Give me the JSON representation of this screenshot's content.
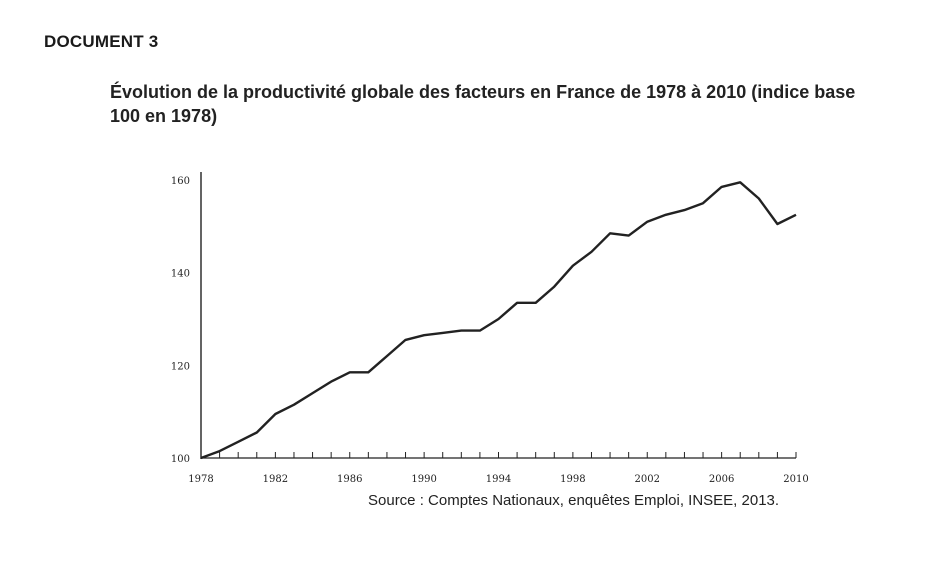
{
  "document_label": "DOCUMENT 3",
  "title": "Évolution de la productivité globale des facteurs en France de 1978 à 2010 (indice base 100 en 1978)",
  "source": "Source : Comptes Nationaux, enquêtes Emploi, INSEE, 2013.",
  "chart_data": {
    "type": "line",
    "title": "Évolution de la productivité globale des facteurs en France de 1978 à 2010 (indice base 100 en 1978)",
    "xlabel": "",
    "ylabel": "",
    "xlim": [
      1978,
      2010
    ],
    "ylim": [
      100,
      160
    ],
    "x_ticks": [
      1978,
      1982,
      1986,
      1990,
      1994,
      1998,
      2002,
      2006,
      2010
    ],
    "y_ticks": [
      100,
      120,
      140,
      160
    ],
    "grid": false,
    "legend": "none",
    "line_color": "#222222",
    "series": [
      {
        "x": [
          1978,
          1979,
          1980,
          1981,
          1982,
          1983,
          1984,
          1985,
          1986,
          1987,
          1988,
          1989,
          1990,
          1991,
          1992,
          1993,
          1994,
          1995,
          1996,
          1997,
          1998,
          1999,
          2000,
          2001,
          2002,
          2003,
          2004,
          2005,
          2006,
          2007,
          2008,
          2009,
          2010
        ],
        "values": [
          100,
          101.5,
          103.5,
          105.5,
          109.5,
          111.5,
          114,
          116.5,
          118.5,
          118.5,
          122,
          125.5,
          126.5,
          127,
          127.5,
          127.5,
          130,
          133.5,
          133.5,
          137,
          141.5,
          144.5,
          148.5,
          148,
          151,
          152.5,
          153.5,
          155,
          158.5,
          159.5,
          156,
          150.5,
          152.5
        ]
      }
    ]
  }
}
